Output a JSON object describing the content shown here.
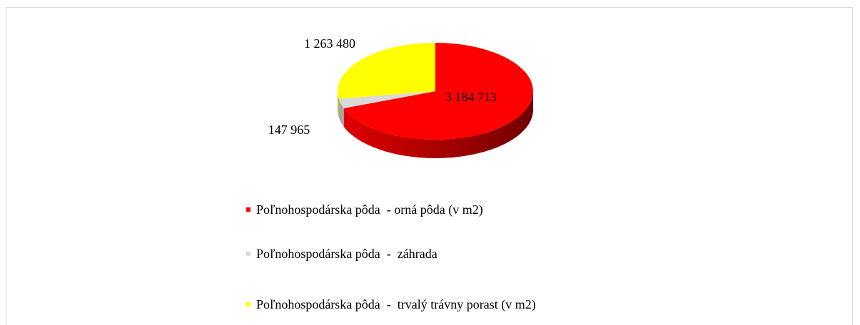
{
  "chart_data": {
    "type": "pie",
    "categories": [
      "Poľnohospodárska pôda  - orná pôda (v m2)",
      "Poľnohospodárska pôda  -  záhrada",
      "Poľnohospodárska pôda  -  trvalý trávny porast (v m2)"
    ],
    "values": [
      3184713,
      147965,
      1263480
    ],
    "value_labels": [
      "3 184 713",
      "147 965",
      "1 263 480"
    ],
    "colors": [
      "#ff0000",
      "#d9d9d9",
      "#ffff00"
    ]
  }
}
